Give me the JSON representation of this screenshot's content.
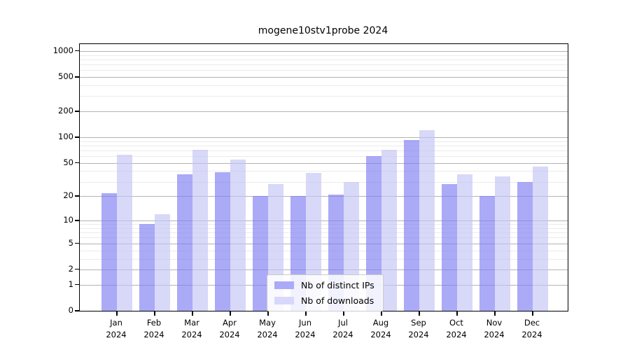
{
  "title": "mogene10stv1probe 2024",
  "chart_data": {
    "type": "bar",
    "title": "mogene10stv1probe 2024",
    "yscale": "log1p",
    "grid": true,
    "ylim": [
      0,
      1300
    ],
    "yticks": [
      1000,
      500,
      200,
      100,
      50,
      20,
      10,
      5,
      2,
      1,
      0
    ],
    "ytick_labels": [
      "1000",
      "500",
      "200",
      "100",
      "50",
      "20",
      "10",
      "5",
      "2",
      "1",
      "0"
    ],
    "minor_yticks": [
      3,
      4,
      6,
      7,
      8,
      9,
      30,
      40,
      60,
      70,
      80,
      90,
      300,
      400,
      600,
      700,
      800,
      900
    ],
    "categories": [
      {
        "month": "Jan",
        "year": "2024"
      },
      {
        "month": "Feb",
        "year": "2024"
      },
      {
        "month": "Mar",
        "year": "2024"
      },
      {
        "month": "Apr",
        "year": "2024"
      },
      {
        "month": "May",
        "year": "2024"
      },
      {
        "month": "Jun",
        "year": "2024"
      },
      {
        "month": "Jul",
        "year": "2024"
      },
      {
        "month": "Aug",
        "year": "2024"
      },
      {
        "month": "Sep",
        "year": "2024"
      },
      {
        "month": "Oct",
        "year": "2024"
      },
      {
        "month": "Nov",
        "year": "2024"
      },
      {
        "month": "Dec",
        "year": "2024"
      }
    ],
    "series": [
      {
        "name": "Nb of distinct IPs",
        "color": "#aaaaf8",
        "fill": "rgba(125,125,243,0.65)",
        "values": [
          22,
          9,
          37,
          39,
          20,
          20,
          21,
          60,
          93,
          28,
          20,
          30
        ]
      },
      {
        "name": "Nb of downloads",
        "color": "#d8d8fa",
        "fill": "rgba(195,195,245,0.65)",
        "values": [
          62,
          12,
          72,
          55,
          28,
          38,
          30,
          72,
          120,
          37,
          35,
          45
        ]
      }
    ],
    "legend_position": "lower center"
  },
  "legend": {
    "items": [
      {
        "label": "Nb of distinct IPs",
        "color": "#aaaaf8"
      },
      {
        "label": "Nb of downloads",
        "color": "#d8d8fa"
      }
    ]
  }
}
